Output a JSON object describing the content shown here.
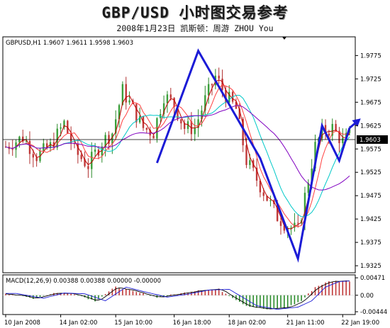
{
  "title": "GBP/USD  小时图交易参考",
  "subtitle": "2008年1月23日   凯斯顿：周游 ZHOU You",
  "chart_data": [
    {
      "type": "candlestick",
      "symbol_header": "GBPUSD,H1  1.9607 1.9611 1.9598 1.9603",
      "current_price": 1.9603,
      "current_price_label": "1.9603",
      "y_ticks": [
        "1.9775",
        "1.9725",
        "1.9675",
        "1.9625",
        "1.9575",
        "1.9525",
        "1.9475",
        "1.9425",
        "1.9375",
        "1.9325"
      ],
      "ylim": [
        1.931,
        1.9815
      ],
      "x_ticks": [
        {
          "label": "10 Jan 2008",
          "bar": 0
        },
        {
          "label": "14 Jan 02:00",
          "bar": 16
        },
        {
          "label": "15 Jan 10:00",
          "bar": 32
        },
        {
          "label": "16 Jan 18:00",
          "bar": 49
        },
        {
          "label": "18 Jan 02:00",
          "bar": 65
        },
        {
          "label": "21 Jan 11:00",
          "bar": 82
        },
        {
          "label": "22 Jan 19:00",
          "bar": 98
        }
      ],
      "num_bars": 101,
      "anchors": [
        [
          0,
          1.958
        ],
        [
          5,
          1.96
        ],
        [
          9,
          1.956
        ],
        [
          13,
          1.958
        ],
        [
          17,
          1.963
        ],
        [
          20,
          1.957
        ],
        [
          24,
          1.954
        ],
        [
          28,
          1.959
        ],
        [
          31,
          1.961
        ],
        [
          34,
          1.97
        ],
        [
          37,
          1.966
        ],
        [
          40,
          1.962
        ],
        [
          43,
          1.961
        ],
        [
          46,
          1.969
        ],
        [
          49,
          1.967
        ],
        [
          52,
          1.962
        ],
        [
          55,
          1.962
        ],
        [
          58,
          1.968
        ],
        [
          61,
          1.973
        ],
        [
          64,
          1.969
        ],
        [
          67,
          1.966
        ],
        [
          70,
          1.955
        ],
        [
          73,
          1.951
        ],
        [
          76,
          1.947
        ],
        [
          79,
          1.943
        ],
        [
          82,
          1.941
        ],
        [
          85,
          1.94
        ],
        [
          88,
          1.951
        ],
        [
          90,
          1.958
        ],
        [
          92,
          1.961
        ],
        [
          95,
          1.962
        ],
        [
          98,
          1.959
        ],
        [
          100,
          1.9603
        ]
      ],
      "moving_average_colors": [
        "#c00000",
        "#ff4040",
        "#00c8c8",
        "#8000c0"
      ],
      "pattern_line": {
        "color": "#1b1bd6",
        "points": [
          [
            44,
            1.9545
          ],
          [
            56,
            1.9785
          ],
          [
            74,
            1.9555
          ],
          [
            85,
            1.934
          ],
          [
            92,
            1.9625
          ],
          [
            97,
            1.955
          ],
          [
            100,
            1.962
          ]
        ],
        "arrow_tip": [
          102,
          1.9625
        ]
      }
    },
    {
      "type": "histogram",
      "title": "MACD(12,26,9)  0.00388  0.00388  0.00000  -0.00000",
      "y_ticks": [
        "0.00471",
        "0.00",
        "-0.00444"
      ],
      "ylim": [
        -0.0052,
        0.0055
      ],
      "anchors": [
        [
          0,
          0.0005
        ],
        [
          8,
          -0.0008
        ],
        [
          14,
          0.0006
        ],
        [
          20,
          0.0004
        ],
        [
          26,
          -0.0015
        ],
        [
          32,
          0.0022
        ],
        [
          38,
          0.0008
        ],
        [
          44,
          -0.0005
        ],
        [
          50,
          0.0003
        ],
        [
          56,
          0.0014
        ],
        [
          62,
          0.0016
        ],
        [
          66,
          -0.0006
        ],
        [
          70,
          -0.0028
        ],
        [
          76,
          -0.0038
        ],
        [
          82,
          -0.0032
        ],
        [
          86,
          -0.0015
        ],
        [
          90,
          0.0022
        ],
        [
          94,
          0.0037
        ],
        [
          98,
          0.0039
        ],
        [
          100,
          0.00388
        ]
      ],
      "signal_lag": 3
    }
  ]
}
